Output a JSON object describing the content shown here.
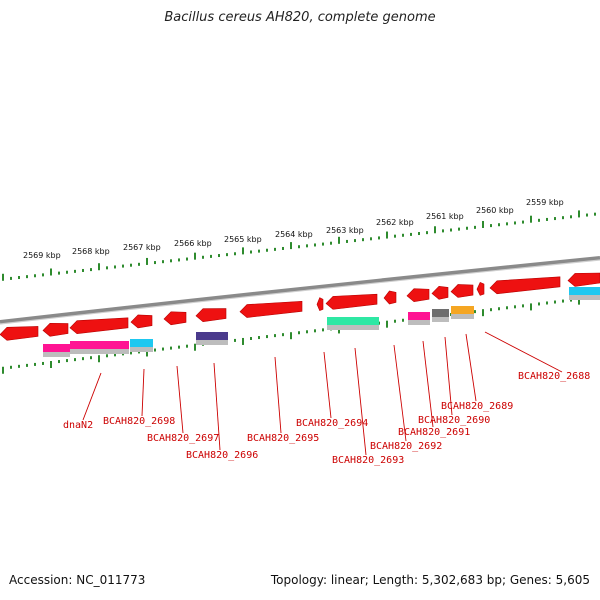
{
  "title": "Bacillus cereus AH820, complete genome",
  "footer": {
    "accession": "Accession: NC_011773",
    "topology": "Topology: linear; Length: 5,302,683 bp; Genes: 5,605"
  },
  "colors": {
    "gene_red": "#ee1111",
    "tick_green": "#2e8b2e",
    "label_red": "#cc0000",
    "backbone_gray": "#8a8a8a",
    "magenta": "#ff1493",
    "cyan": "#1ec8f0",
    "navy": "#4a3a8c",
    "mint": "#2ee8a4",
    "dark_gray": "#6e6e6e",
    "orange": "#f5a623"
  },
  "scale_labels": [
    "2569 kbp",
    "2568 kbp",
    "2567 kbp",
    "2566 kbp",
    "2565 kbp",
    "2564 kbp",
    "2563 kbp",
    "2562 kbp",
    "2561 kbp",
    "2560 kbp",
    "2559 kbp"
  ],
  "gene_labels": [
    "dnaN2",
    "BCAH820_2698",
    "BCAH820_2697",
    "BCAH820_2696",
    "BCAH820_2695",
    "BCAH820_2694",
    "BCAH820_2693",
    "BCAH820_2692",
    "BCAH820_2691",
    "BCAH820_2690",
    "BCAH820_2689",
    "BCAH820_2688"
  ]
}
